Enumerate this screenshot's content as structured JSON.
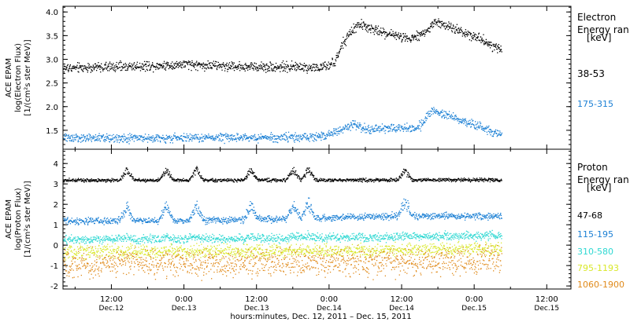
{
  "colors": {
    "background": "#ffffff",
    "axis": "#000000",
    "black_series": "#000000",
    "blue_series": "#1a7fd4",
    "cyan_series": "#2ed8d2",
    "yellow_series": "#d9e82a",
    "orange_series": "#e08a1a"
  },
  "xaxis": {
    "label": "hours:minutes, Dec. 12, 2011 – Dec. 15, 2011",
    "ticks": [
      {
        "time": "12:00",
        "date": "Dec.12",
        "hours": 12
      },
      {
        "time": "0:00",
        "date": "Dec.13",
        "hours": 24
      },
      {
        "time": "12:00",
        "date": "Dec.13",
        "hours": 36
      },
      {
        "time": "0:00",
        "date": "Dec.14",
        "hours": 48
      },
      {
        "time": "12:00",
        "date": "Dec.14",
        "hours": 60
      },
      {
        "time": "0:00",
        "date": "Dec.15",
        "hours": 72
      },
      {
        "time": "12:00",
        "date": "Dec.15",
        "hours": 84
      }
    ]
  },
  "chart_data": [
    {
      "type": "scatter",
      "ylabel": [
        "ACE EPAM",
        "log(Electron Flux)",
        "[1/(cm²s ster MeV)]"
      ],
      "ylim": [
        1.1,
        4.12
      ],
      "yticks": [
        "1.5",
        "2.0",
        "2.5",
        "3.0",
        "3.5",
        "4.0"
      ],
      "legend_title": [
        "Electron",
        "Energy ran",
        "[keV]"
      ],
      "xlim_hours": [
        4,
        88
      ],
      "data_end_hours": 76.5,
      "series": [
        {
          "name": "38-53",
          "color": "#000000",
          "noise": 0.05,
          "points": [
            [
              4,
              2.82
            ],
            [
              12,
              2.85
            ],
            [
              20,
              2.88
            ],
            [
              24,
              2.9
            ],
            [
              30,
              2.87
            ],
            [
              36,
              2.85
            ],
            [
              42,
              2.85
            ],
            [
              47,
              2.83
            ],
            [
              49,
              2.95
            ],
            [
              50,
              3.3
            ],
            [
              52,
              3.65
            ],
            [
              53,
              3.75
            ],
            [
              56,
              3.6
            ],
            [
              60,
              3.48
            ],
            [
              62,
              3.47
            ],
            [
              64,
              3.6
            ],
            [
              65.5,
              3.8
            ],
            [
              67,
              3.73
            ],
            [
              72,
              3.5
            ],
            [
              76.5,
              3.2
            ]
          ]
        },
        {
          "name": "175-315",
          "color": "#1a7fd4",
          "noise": 0.045,
          "points": [
            [
              4,
              1.35
            ],
            [
              24,
              1.35
            ],
            [
              36,
              1.36
            ],
            [
              46,
              1.37
            ],
            [
              48,
              1.42
            ],
            [
              50,
              1.52
            ],
            [
              52,
              1.65
            ],
            [
              54,
              1.52
            ],
            [
              58,
              1.56
            ],
            [
              62,
              1.55
            ],
            [
              63,
              1.6
            ],
            [
              65,
              1.95
            ],
            [
              67,
              1.85
            ],
            [
              72,
              1.62
            ],
            [
              76.5,
              1.4
            ]
          ]
        }
      ]
    },
    {
      "type": "scatter",
      "ylabel": [
        "ACE EPAM",
        "log(Proton Flux)",
        "[1/(cm²s ster MeV)]"
      ],
      "ylim": [
        -2.15,
        4.7
      ],
      "yticks": [
        "-2",
        "-1",
        "0",
        "1",
        "2",
        "3",
        "4"
      ],
      "legend_title": [
        "Proton",
        "Energy ran",
        "[keV]"
      ],
      "xlim_hours": [
        4,
        88
      ],
      "data_end_hours": 76.5,
      "spike_hours": [
        14.5,
        21,
        26,
        35,
        42,
        44.5,
        60.5
      ],
      "series": [
        {
          "name": "47-68",
          "color": "#000000",
          "noise": 0.04,
          "points": [
            [
              4,
              3.2
            ],
            [
              76.5,
              3.22
            ]
          ],
          "spike_height": 0.5
        },
        {
          "name": "115-195",
          "color": "#1a7fd4",
          "noise": 0.08,
          "points": [
            [
              4,
              1.2
            ],
            [
              24,
              1.22
            ],
            [
              40,
              1.3
            ],
            [
              60,
              1.45
            ],
            [
              76.5,
              1.45
            ]
          ],
          "spike_height": 0.7
        },
        {
          "name": "310-580",
          "color": "#2ed8d2",
          "noise": 0.1,
          "points": [
            [
              4,
              0.3
            ],
            [
              40,
              0.35
            ],
            [
              76.5,
              0.48
            ]
          ],
          "spike_height": 0.1
        },
        {
          "name": "795-1193",
          "color": "#d9e82a",
          "noise": 0.16,
          "points": [
            [
              4,
              -0.3
            ],
            [
              40,
              -0.28
            ],
            [
              76.5,
              -0.15
            ]
          ],
          "spike_height": 0
        },
        {
          "name": "1060-1900",
          "color": "#e08a1a",
          "noise": 0.32,
          "points": [
            [
              4,
              -0.9
            ],
            [
              40,
              -0.85
            ],
            [
              76.5,
              -0.75
            ]
          ],
          "spike_height": 0
        }
      ]
    }
  ]
}
